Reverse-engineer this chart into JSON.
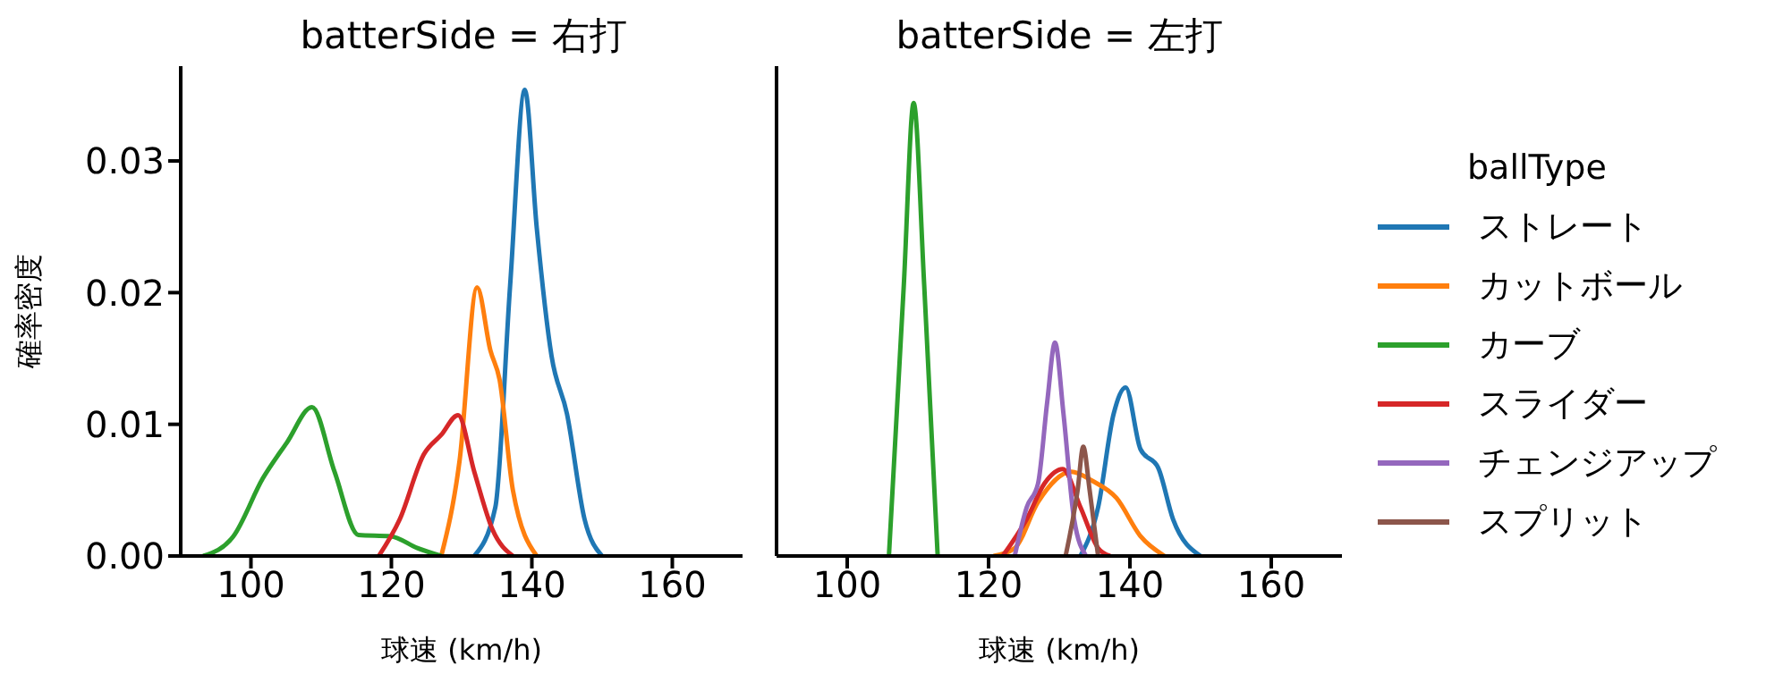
{
  "chart_data": [
    {
      "type": "line",
      "title": "batterSide = 右打",
      "xlabel": "球速 (km/h)",
      "ylabel": "確率密度",
      "xlim": [
        90,
        170
      ],
      "xticks": [
        100,
        120,
        140,
        160
      ],
      "ylim": [
        0,
        0.0372
      ],
      "yticks": [
        {
          "value": 0,
          "label": "0.00"
        },
        {
          "value": 0.01,
          "label": "0.01"
        },
        {
          "value": 0.02,
          "label": "0.02"
        },
        {
          "value": 0.03,
          "label": "0.03"
        }
      ],
      "grid": false,
      "marker": "none",
      "line_style": "solid",
      "series": [
        {
          "color": "#1f77b4",
          "x": [
            131.8,
            134.8,
            136.9,
            139.0,
            140.7,
            142.8,
            145.0,
            147.5,
            150.0
          ],
          "values": [
            0,
            0.0037,
            0.0205,
            0.0354,
            0.0249,
            0.0152,
            0.0108,
            0.0028,
            0
          ]
        },
        {
          "color": "#ff7f0e",
          "x": [
            127.1,
            129.7,
            132.2,
            134.1,
            135.4,
            137.3,
            140.7
          ],
          "values": [
            0,
            0.0072,
            0.0204,
            0.0156,
            0.0134,
            0.005,
            0
          ]
        },
        {
          "color": "#2ca02c",
          "x": [
            93.2,
            97.5,
            101.7,
            105.1,
            108.7,
            111.9,
            115.3,
            119.9,
            123.7,
            127.1
          ],
          "values": [
            0,
            0.0015,
            0.0059,
            0.0086,
            0.0113,
            0.0064,
            0.0016,
            0.0015,
            0.0006,
            0
          ]
        },
        {
          "color": "#d62728",
          "x": [
            118.2,
            121.2,
            124.6,
            127.1,
            129.5,
            131.8,
            134.4,
            137.3
          ],
          "values": [
            0,
            0.0028,
            0.0077,
            0.0092,
            0.0107,
            0.0064,
            0.002,
            0
          ]
        }
      ]
    },
    {
      "type": "line",
      "title": "batterSide = 左打",
      "xlabel": "球速 (km/h)",
      "legend_title": "ballType",
      "legend": "right",
      "tick_labels": "x",
      "xlim": [
        90,
        170
      ],
      "xticks": [
        100,
        120,
        140,
        160
      ],
      "ylim": [
        0,
        0.0372
      ],
      "yticks": [
        {
          "value": 0,
          "label": null
        },
        {
          "value": 0.01,
          "label": null
        },
        {
          "value": 0.02,
          "label": null
        },
        {
          "value": 0.03,
          "label": null
        }
      ],
      "grid": false,
      "marker": "none",
      "line_style": "solid",
      "series": [
        {
          "name": "ストレート",
          "color": "#1f77b4",
          "x": [
            133.0,
            135.5,
            137.7,
            139.4,
            141.5,
            144.0,
            146.1,
            150.0
          ],
          "values": [
            0,
            0.0037,
            0.0108,
            0.0128,
            0.0081,
            0.0067,
            0.0028,
            0
          ]
        },
        {
          "name": "カットボール",
          "color": "#ff7f0e",
          "x": [
            120.7,
            123.7,
            127.0,
            131.7,
            134.7,
            138.1,
            141.5,
            144.9
          ],
          "values": [
            0,
            0.0006,
            0.0041,
            0.0064,
            0.0057,
            0.0044,
            0.0015,
            0
          ]
        },
        {
          "name": "カーブ",
          "color": "#2ca02c",
          "x": [
            105.9,
            108.0,
            109.4,
            110.9,
            112.8
          ],
          "values": [
            0,
            0.0205,
            0.0344,
            0.0205,
            0
          ]
        },
        {
          "name": "スライダー",
          "color": "#d62728",
          "x": [
            122.0,
            125.4,
            127.9,
            130.5,
            133.0,
            135.5,
            137.2
          ],
          "values": [
            0,
            0.0028,
            0.0055,
            0.0066,
            0.0037,
            0.0006,
            0
          ]
        },
        {
          "name": "チェンジアップ",
          "color": "#9467bd",
          "x": [
            123.7,
            125.4,
            127.0,
            128.3,
            129.4,
            130.6,
            132.1,
            133.8
          ],
          "values": [
            0,
            0.0037,
            0.0055,
            0.0117,
            0.0162,
            0.0108,
            0.0028,
            0
          ]
        },
        {
          "name": "スプリット",
          "color": "#8c564b",
          "x": [
            130.9,
            132.6,
            133.4,
            134.3,
            135.5
          ],
          "values": [
            0,
            0.005,
            0.0083,
            0.005,
            0
          ]
        }
      ]
    }
  ]
}
